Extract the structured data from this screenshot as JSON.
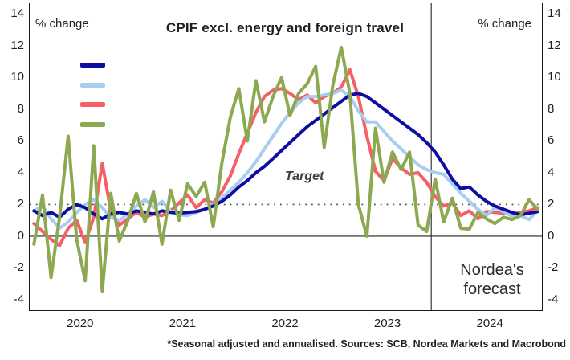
{
  "header": {
    "title": "CPIF excl. energy and foreign travel",
    "y_axis_label_left": "% change",
    "y_axis_label_right": "% change"
  },
  "annotations": {
    "target_label": "Target",
    "forecast_line1": "Nordea's",
    "forecast_line2": "forecast",
    "footnote": "*Seasonal adjusted and annualised. Sources: SCB, Nordea Markets and Macrobond"
  },
  "colors": {
    "text": "#1f1f1f",
    "axis": "#1a1a1a",
    "target_dotted": "#4d4d4d",
    "zero_line": "#262626",
    "forecast_divider": "#262626",
    "dark_blue": "#0d0da0",
    "light_blue": "#a8cdf0",
    "red": "#f65f64",
    "green": "#8ca851"
  },
  "chart_data": {
    "type": "line",
    "title": "CPIF excl. energy and foreign travel",
    "xlabel": "",
    "ylabel": "% change",
    "x_range_years": [
      2020,
      2025
    ],
    "x_tick_labels": [
      "2020",
      "2021",
      "2022",
      "2023",
      "2024"
    ],
    "x_tick_year_centers": [
      2020.5,
      2021.5,
      2022.5,
      2023.5,
      2024.5
    ],
    "y_ticks": [
      14,
      12,
      10,
      8,
      6,
      4,
      2,
      0,
      -2,
      -4
    ],
    "ylim": [
      -4.66,
      14.68
    ],
    "grid": false,
    "target_line_value": 2,
    "zero_line_value": 0,
    "forecast_start_year": 2023.92,
    "legend_position": "upper-left",
    "legend": [
      {
        "label": "",
        "color_key": "dark_blue"
      },
      {
        "label": "",
        "color_key": "light_blue"
      },
      {
        "label": "",
        "color_key": "red"
      },
      {
        "label": "",
        "color_key": "green"
      }
    ],
    "frequency": "monthly",
    "start": "2020-01",
    "series": [
      {
        "name": "green-monthly-annualised",
        "color_key": "green",
        "values": [
          -0.5,
          2.6,
          -2.6,
          1.2,
          6.3,
          -0.2,
          -2.8,
          5.7,
          -3.5,
          2.7,
          -0.3,
          1.0,
          2.7,
          0.9,
          2.8,
          -0.5,
          2.9,
          1.0,
          3.3,
          2.5,
          3.4,
          0.6,
          4.6,
          7.5,
          9.3,
          6.0,
          9.8,
          7.2,
          8.8,
          10.0,
          7.6,
          9.0,
          9.6,
          10.7,
          5.6,
          9.5,
          11.9,
          9.0,
          2.0,
          0.0,
          6.8,
          3.4,
          5.3,
          4.2,
          5.3,
          0.7,
          0.3,
          3.6,
          0.9,
          2.4,
          0.5,
          0.45,
          1.5,
          1.1,
          0.8,
          1.2,
          1.05,
          1.3,
          2.3,
          1.7
        ]
      },
      {
        "name": "red-3m-annualised",
        "color_key": "red",
        "values": [
          0.8,
          0.3,
          -0.2,
          -0.6,
          0.5,
          1.0,
          -0.4,
          1.2,
          4.6,
          1.6,
          0.7,
          1.1,
          1.5,
          1.2,
          1.4,
          1.3,
          1.6,
          2.1,
          2.6,
          1.8,
          2.3,
          2.1,
          2.8,
          3.8,
          5.2,
          6.5,
          7.8,
          8.8,
          9.2,
          9.3,
          9.0,
          8.6,
          8.9,
          8.4,
          8.8,
          9.0,
          9.4,
          10.5,
          8.8,
          6.3,
          4.1,
          3.5,
          4.9,
          4.3,
          3.9,
          4.0,
          3.4,
          2.5,
          1.9,
          2.1,
          1.3,
          1.6,
          1.1,
          1.55,
          1.5,
          1.45,
          1.4,
          1.5,
          1.6,
          1.8
        ]
      },
      {
        "name": "light-blue-6m-annualised",
        "color_key": "light_blue",
        "values": [
          1.6,
          1.9,
          1.1,
          0.5,
          0.9,
          1.5,
          2.0,
          2.3,
          1.8,
          1.2,
          1.0,
          1.4,
          1.9,
          2.3,
          1.8,
          2.2,
          1.6,
          1.35,
          1.3,
          1.5,
          1.7,
          2.0,
          2.4,
          2.9,
          3.4,
          4.0,
          4.7,
          5.5,
          6.3,
          7.1,
          7.8,
          8.4,
          8.8,
          8.8,
          8.9,
          9.0,
          9.2,
          8.8,
          7.9,
          7.2,
          7.2,
          6.6,
          6.0,
          5.5,
          5.0,
          4.5,
          4.2,
          4.0,
          3.9,
          3.3,
          2.7,
          2.2,
          1.7,
          1.3,
          1.8,
          1.55,
          1.25,
          1.3,
          1.05,
          1.6
        ]
      },
      {
        "name": "dark-blue-yoy",
        "color_key": "dark_blue",
        "values": [
          1.6,
          1.3,
          1.5,
          1.2,
          1.7,
          2.0,
          1.8,
          1.4,
          1.1,
          1.4,
          1.5,
          1.4,
          1.6,
          1.5,
          1.4,
          1.6,
          1.5,
          1.45,
          1.5,
          1.55,
          1.7,
          1.9,
          2.2,
          2.6,
          3.1,
          3.5,
          4.0,
          4.4,
          4.9,
          5.4,
          5.9,
          6.4,
          6.9,
          7.3,
          7.7,
          8.1,
          8.5,
          8.9,
          9.0,
          8.8,
          8.4,
          8.0,
          7.6,
          7.2,
          6.8,
          6.4,
          5.9,
          5.3,
          4.5,
          3.6,
          3.0,
          3.1,
          2.6,
          2.2,
          1.9,
          1.7,
          1.5,
          1.35,
          1.45,
          1.55
        ]
      }
    ],
    "draw_order_note": "red, light_blue, dark_blue drawn first; green topmost"
  }
}
